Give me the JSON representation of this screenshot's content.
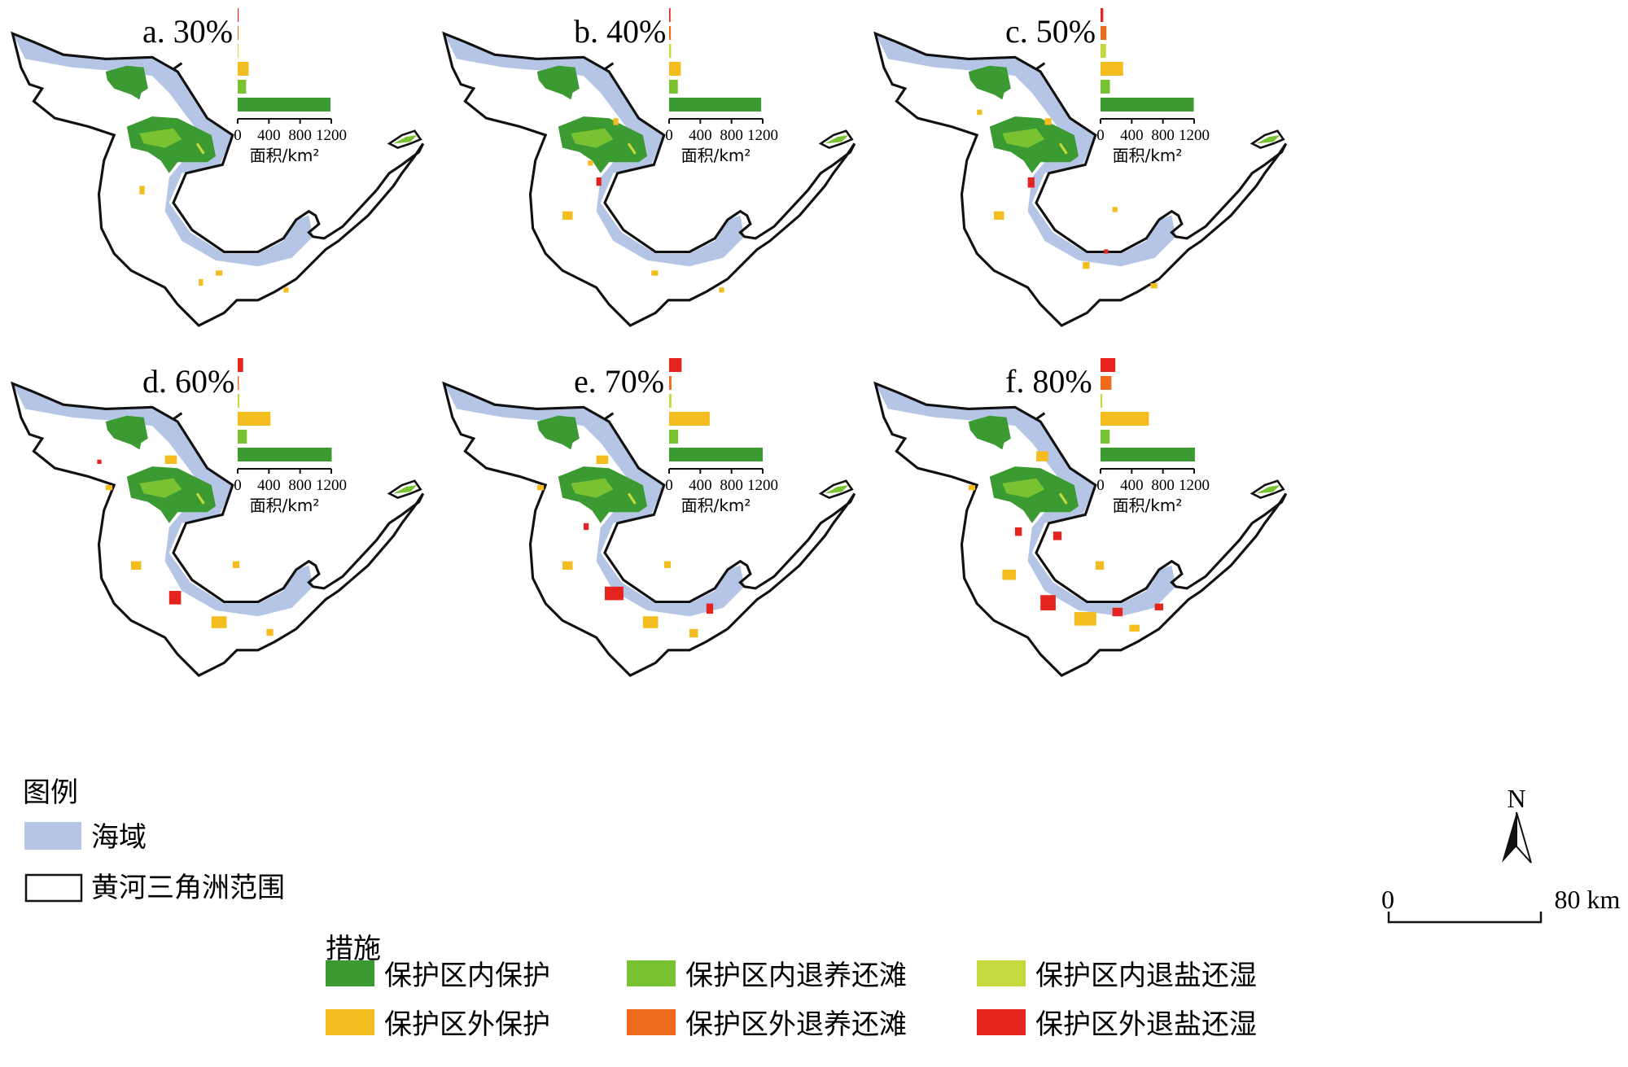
{
  "colors": {
    "sea": "#b4c5e6",
    "outline": "#111111",
    "inside_protect": "#3c9a32",
    "inside_tidal": "#79c232",
    "inside_wetland": "#c5d93c",
    "outside_protect": "#f4bd1f",
    "outside_tidal": "#ee6b1e",
    "outside_wetland": "#e52420"
  },
  "panels": [
    {
      "title": "a. 30%",
      "bars": [
        12,
        4,
        8,
        140,
        108,
        1190
      ]
    },
    {
      "title": "b. 40%",
      "bars": [
        18,
        22,
        25,
        150,
        112,
        1180
      ]
    },
    {
      "title": "c. 50%",
      "bars": [
        35,
        75,
        70,
        290,
        120,
        1195
      ]
    },
    {
      "title": "d. 60%",
      "bars": [
        70,
        15,
        20,
        420,
        118,
        1205
      ]
    },
    {
      "title": "e. 70%",
      "bars": [
        160,
        30,
        30,
        520,
        115,
        1200
      ]
    },
    {
      "title": "f. 80%",
      "bars": [
        190,
        140,
        22,
        620,
        117,
        1210
      ]
    }
  ],
  "inset_axis": {
    "ticks": [
      "0",
      "400",
      "800",
      "1200"
    ],
    "label": "面积/km²",
    "max": 1200
  },
  "legend": {
    "title": "图例",
    "sea": "海域",
    "boundary": "黄河三角洲范围"
  },
  "measures": {
    "title": "措施",
    "items": [
      {
        "label": "保护区内保护",
        "color": "#3c9a32"
      },
      {
        "label": "保护区内退养还滩",
        "color": "#79c232"
      },
      {
        "label": "保护区内退盐还湿",
        "color": "#c5d93c"
      },
      {
        "label": "保护区外保护",
        "color": "#f4bd1f"
      },
      {
        "label": "保护区外退养还滩",
        "color": "#ee6b1e"
      },
      {
        "label": "保护区外退盐还湿",
        "color": "#e52420"
      }
    ]
  },
  "north_label": "N",
  "scale": {
    "start": "0",
    "end": "80 km"
  }
}
